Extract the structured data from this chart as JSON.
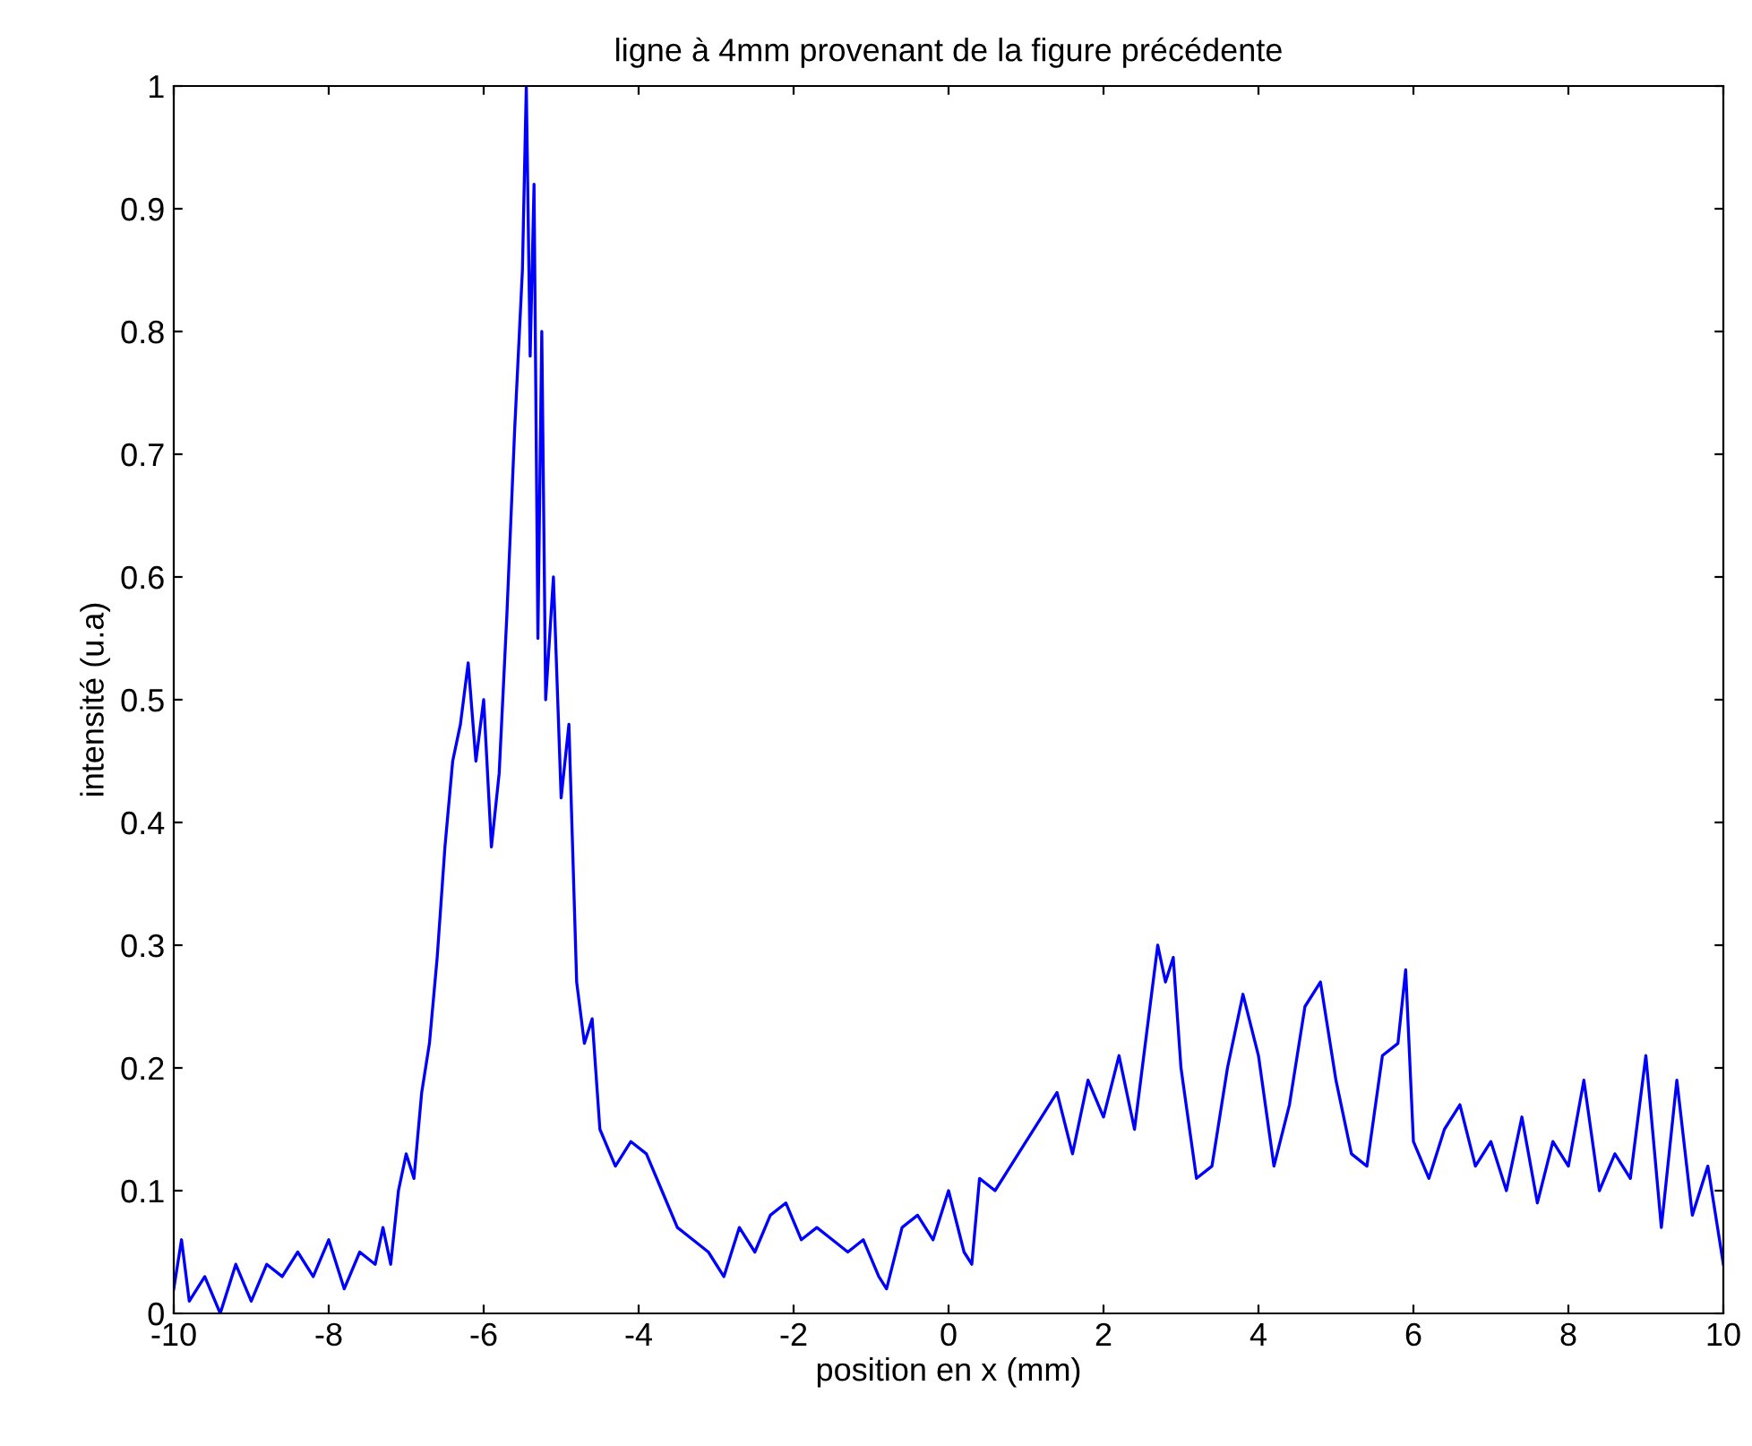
{
  "chart_data": {
    "type": "line",
    "title": "ligne à 4mm provenant de la figure précédente",
    "xlabel": "position en x (mm)",
    "ylabel": "intensité (u.a)",
    "series": [
      {
        "color": "#0000ff",
        "x": [
          -10,
          -9.9,
          -9.8,
          -9.6,
          -9.4,
          -9.2,
          -9.0,
          -8.8,
          -8.6,
          -8.4,
          -8.2,
          -8.0,
          -7.8,
          -7.6,
          -7.4,
          -7.3,
          -7.2,
          -7.1,
          -7.0,
          -6.9,
          -6.8,
          -6.7,
          -6.6,
          -6.5,
          -6.4,
          -6.3,
          -6.2,
          -6.1,
          -6.0,
          -5.9,
          -5.8,
          -5.7,
          -5.6,
          -5.5,
          -5.45,
          -5.4,
          -5.35,
          -5.3,
          -5.25,
          -5.2,
          -5.1,
          -5.0,
          -4.9,
          -4.8,
          -4.7,
          -4.6,
          -4.5,
          -4.3,
          -4.1,
          -3.9,
          -3.7,
          -3.5,
          -3.3,
          -3.1,
          -2.9,
          -2.7,
          -2.5,
          -2.3,
          -2.1,
          -1.9,
          -1.7,
          -1.5,
          -1.3,
          -1.1,
          -0.9,
          -0.8,
          -0.6,
          -0.4,
          -0.2,
          0.0,
          0.2,
          0.3,
          0.4,
          0.6,
          0.8,
          1.0,
          1.2,
          1.4,
          1.6,
          1.8,
          2.0,
          2.2,
          2.4,
          2.6,
          2.7,
          2.8,
          2.9,
          3.0,
          3.2,
          3.4,
          3.6,
          3.8,
          4.0,
          4.2,
          4.4,
          4.6,
          4.8,
          5.0,
          5.2,
          5.4,
          5.6,
          5.8,
          5.9,
          6.0,
          6.2,
          6.4,
          6.6,
          6.8,
          7.0,
          7.2,
          7.4,
          7.6,
          7.8,
          8.0,
          8.2,
          8.4,
          8.6,
          8.8,
          9.0,
          9.2,
          9.4,
          9.6,
          9.8,
          10.0
        ],
        "values": [
          0.02,
          0.06,
          0.01,
          0.03,
          0.0,
          0.04,
          0.01,
          0.04,
          0.03,
          0.05,
          0.03,
          0.06,
          0.02,
          0.05,
          0.04,
          0.07,
          0.04,
          0.1,
          0.13,
          0.11,
          0.18,
          0.22,
          0.29,
          0.38,
          0.45,
          0.48,
          0.53,
          0.45,
          0.5,
          0.38,
          0.44,
          0.57,
          0.72,
          0.85,
          1.0,
          0.78,
          0.92,
          0.55,
          0.8,
          0.5,
          0.6,
          0.42,
          0.48,
          0.27,
          0.22,
          0.24,
          0.15,
          0.12,
          0.14,
          0.13,
          0.1,
          0.07,
          0.06,
          0.05,
          0.03,
          0.07,
          0.05,
          0.08,
          0.09,
          0.06,
          0.07,
          0.06,
          0.05,
          0.06,
          0.03,
          0.02,
          0.07,
          0.08,
          0.06,
          0.1,
          0.05,
          0.04,
          0.11,
          0.1,
          0.12,
          0.14,
          0.16,
          0.18,
          0.13,
          0.19,
          0.16,
          0.21,
          0.15,
          0.25,
          0.3,
          0.27,
          0.29,
          0.2,
          0.11,
          0.12,
          0.2,
          0.26,
          0.21,
          0.12,
          0.17,
          0.25,
          0.27,
          0.19,
          0.13,
          0.12,
          0.21,
          0.22,
          0.28,
          0.14,
          0.11,
          0.15,
          0.17,
          0.12,
          0.14,
          0.1,
          0.16,
          0.09,
          0.14,
          0.12,
          0.19,
          0.1,
          0.13,
          0.11,
          0.21,
          0.07,
          0.19,
          0.08,
          0.12,
          0.04
        ]
      }
    ],
    "xlim": [
      -10,
      10
    ],
    "xticks": [
      -10,
      -8,
      -6,
      -4,
      -2,
      0,
      2,
      4,
      6,
      8,
      10
    ],
    "ylim": [
      0,
      1
    ],
    "yticks": [
      0,
      0.1,
      0.2,
      0.3,
      0.4,
      0.5,
      0.6,
      0.7,
      0.8,
      0.9,
      1
    ],
    "grid": false,
    "legend": false
  }
}
